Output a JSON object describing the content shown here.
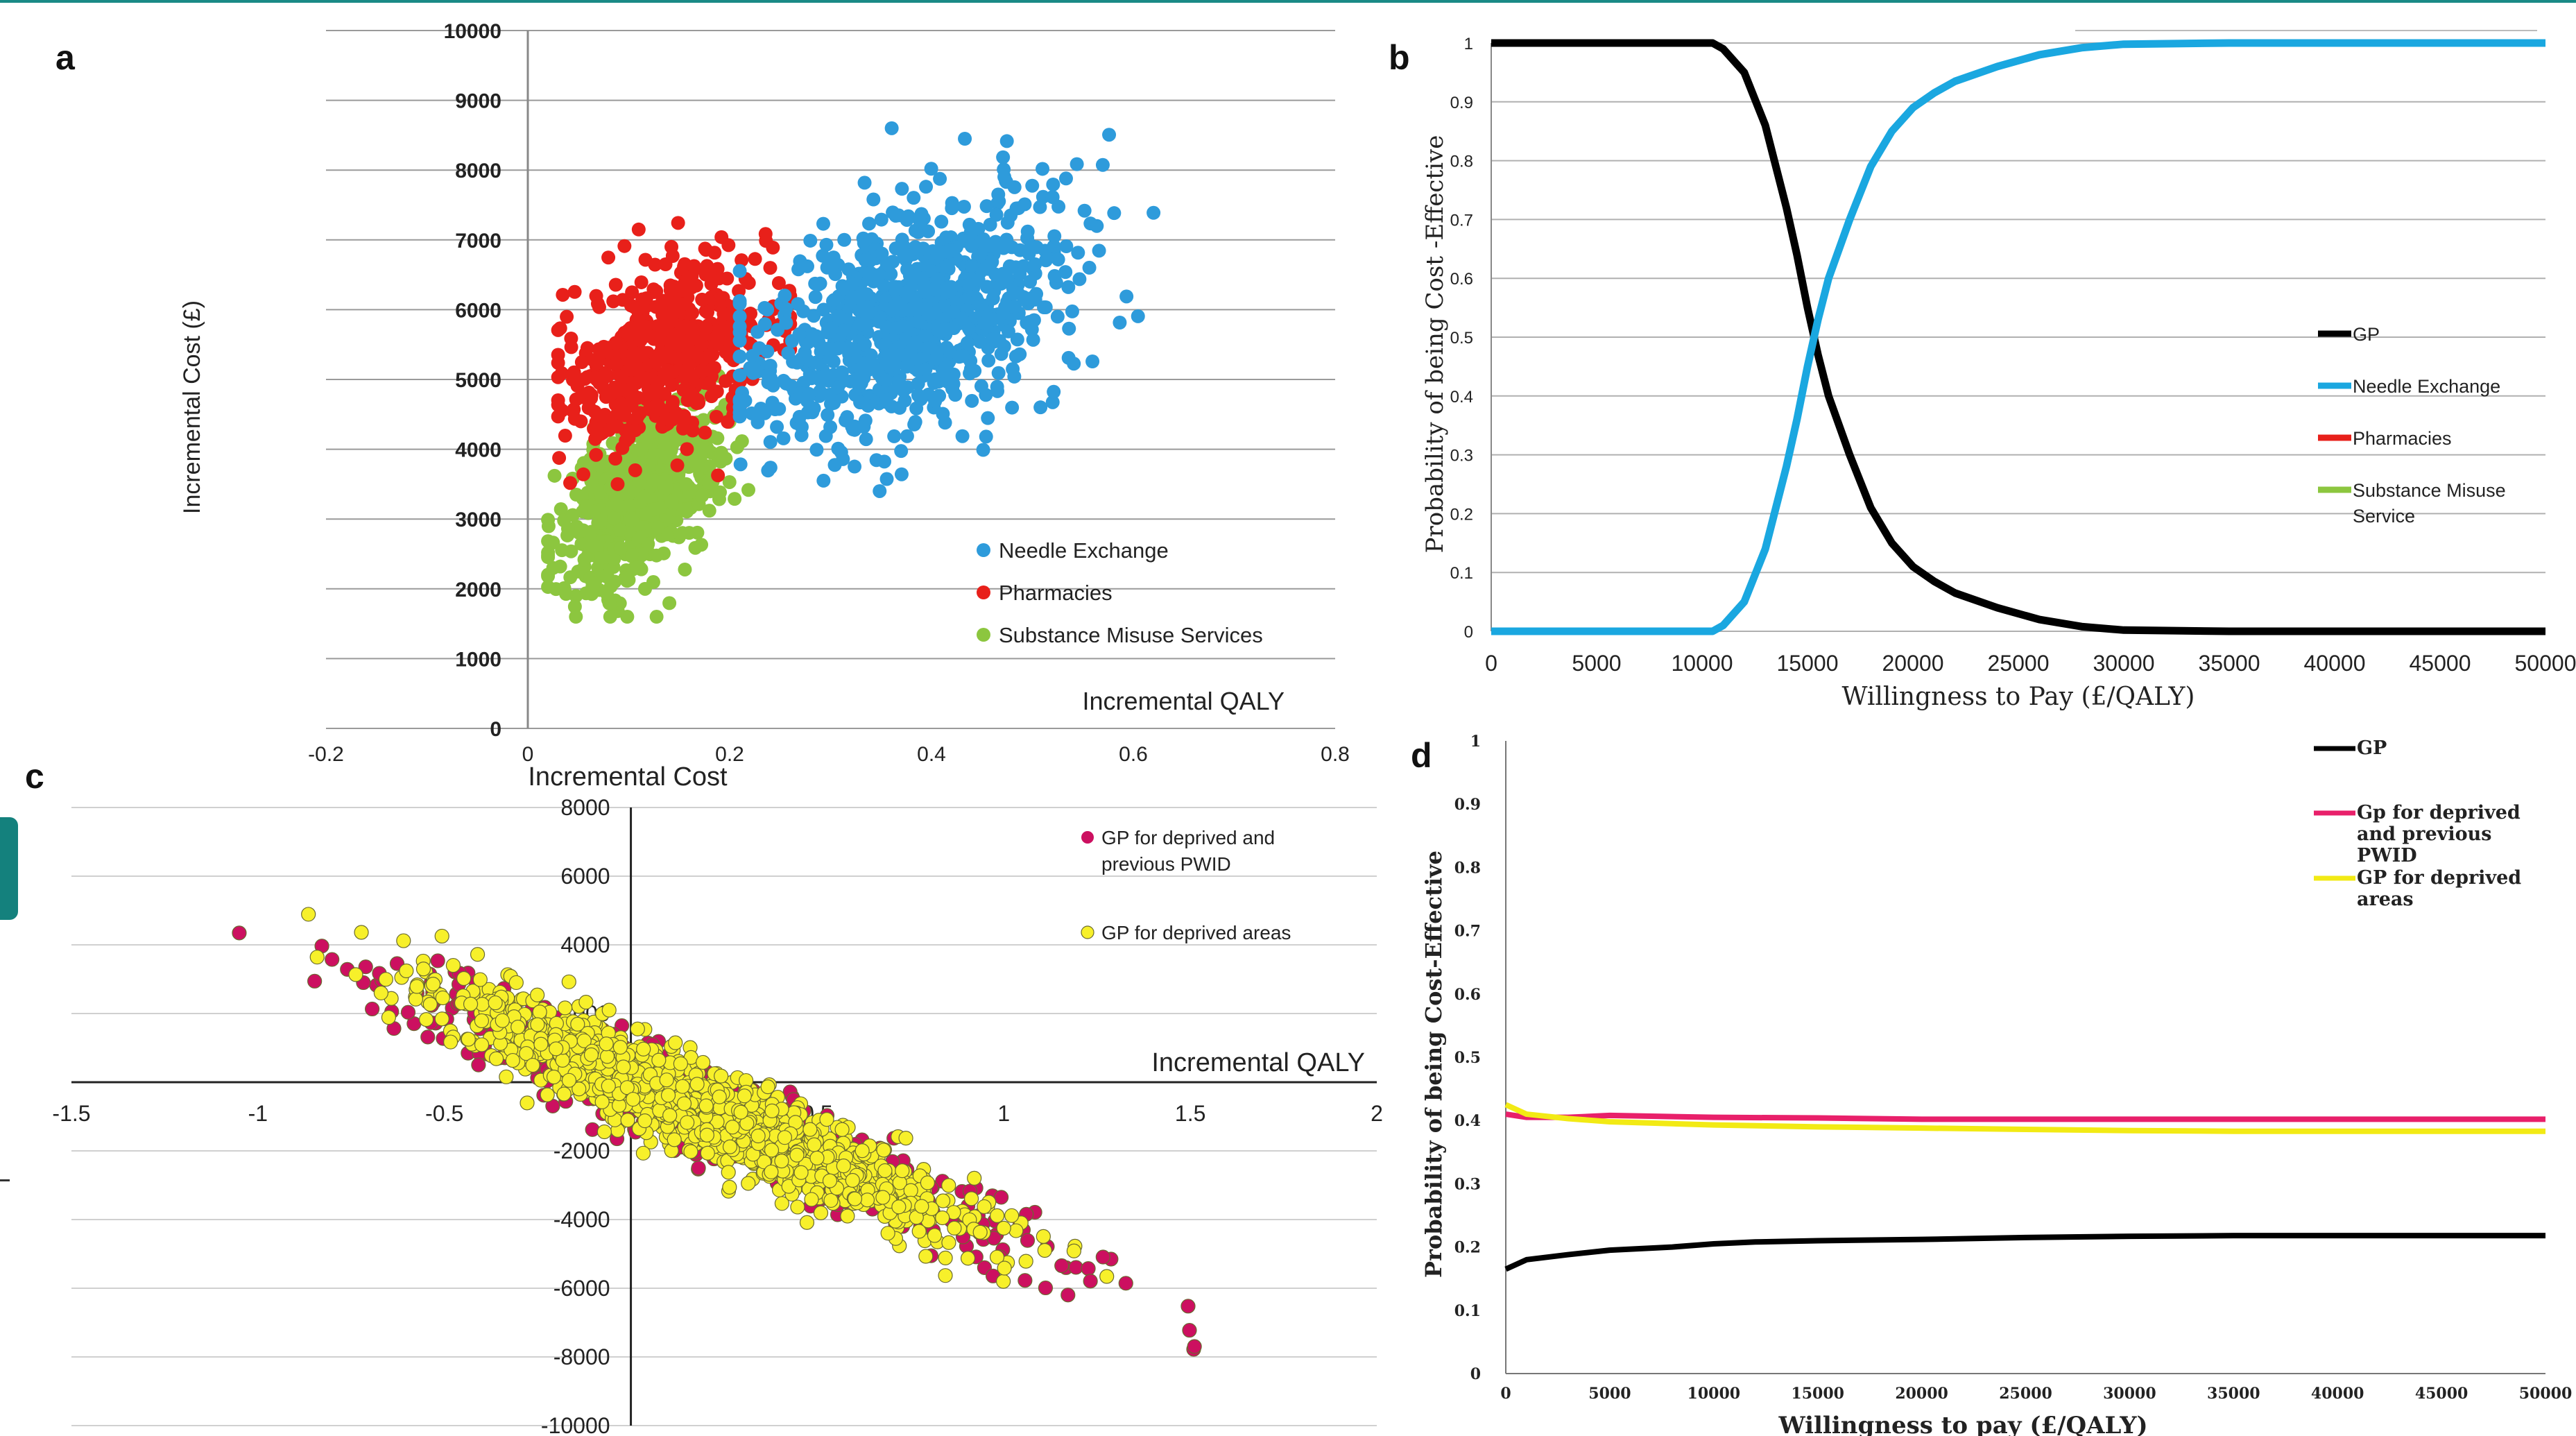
{
  "panels": {
    "a": "a",
    "b": "b",
    "c": "c",
    "d": "d"
  },
  "chart_data": [
    {
      "id": "a",
      "type": "scatter",
      "title": "",
      "xlabel": "Incremental QALY",
      "ylabel": "Incremental Cost (£)",
      "xlim": [
        -0.2,
        0.8
      ],
      "ylim": [
        0,
        10000
      ],
      "y_ticks": [
        0,
        1000,
        2000,
        3000,
        4000,
        5000,
        6000,
        7000,
        8000,
        9000,
        10000
      ],
      "x_ticks": [
        -0.2,
        0,
        0.2,
        0.4,
        0.6,
        0.8
      ],
      "x_tick_labels": [
        "-0.2",
        "0",
        "0.2",
        "0.4",
        "0.6",
        "0.8"
      ],
      "grid": true,
      "legend_position": "bottom-right",
      "series": [
        {
          "name": "Needle Exchange",
          "color": "#2e9bdb",
          "cloud": {
            "cx": 0.38,
            "cy": 5900,
            "sx": 0.075,
            "sy": 850,
            "rho": 0.45,
            "n": 900,
            "x_range": [
              0.21,
              0.62
            ],
            "y_range": [
              3400,
              8600
            ]
          }
        },
        {
          "name": "Pharmacies",
          "color": "#e8201a",
          "cloud": {
            "cx": 0.14,
            "cy": 5400,
            "sx": 0.05,
            "sy": 650,
            "rho": 0.4,
            "n": 550,
            "x_range": [
              0.03,
              0.26
            ],
            "y_range": [
              3500,
              7400
            ]
          }
        },
        {
          "name": "Substance Misuse Services",
          "color": "#8cc63f",
          "cloud": {
            "cx": 0.11,
            "cy": 3300,
            "sx": 0.038,
            "sy": 650,
            "rho": 0.5,
            "n": 650,
            "x_range": [
              0.02,
              0.22
            ],
            "y_range": [
              1600,
              5100
            ]
          }
        }
      ]
    },
    {
      "id": "b",
      "type": "line",
      "title": "",
      "xlabel": "Willingness to Pay (£/QALY)",
      "ylabel": "Probability of being Cost -Effective",
      "xlim": [
        0,
        50000
      ],
      "ylim": [
        0,
        1
      ],
      "x_ticks": [
        0,
        5000,
        10000,
        15000,
        20000,
        25000,
        30000,
        35000,
        40000,
        45000,
        50000
      ],
      "y_ticks": [
        0,
        0.1,
        0.2,
        0.3,
        0.4,
        0.5,
        0.6,
        0.7,
        0.8,
        0.9,
        1
      ],
      "grid": true,
      "legend_position": "right",
      "series": [
        {
          "name": "GP",
          "color": "#000000",
          "x": [
            0,
            10000,
            10500,
            11000,
            12000,
            13000,
            14000,
            14500,
            15000,
            15500,
            16000,
            17000,
            18000,
            19000,
            20000,
            21000,
            22000,
            24000,
            26000,
            28000,
            30000,
            35000,
            40000,
            45000,
            50000
          ],
          "y": [
            1,
            1,
            1,
            0.99,
            0.95,
            0.86,
            0.72,
            0.64,
            0.55,
            0.47,
            0.4,
            0.3,
            0.21,
            0.15,
            0.11,
            0.085,
            0.065,
            0.04,
            0.02,
            0.008,
            0.002,
            0,
            0,
            0,
            0
          ]
        },
        {
          "name": "Needle Exchange",
          "color": "#1aa7e0",
          "x": [
            0,
            10000,
            10500,
            11000,
            12000,
            13000,
            14000,
            14500,
            15000,
            15500,
            16000,
            17000,
            18000,
            19000,
            20000,
            21000,
            22000,
            24000,
            26000,
            28000,
            30000,
            35000,
            40000,
            45000,
            50000
          ],
          "y": [
            0,
            0,
            0,
            0.01,
            0.05,
            0.14,
            0.28,
            0.36,
            0.45,
            0.53,
            0.6,
            0.7,
            0.79,
            0.85,
            0.89,
            0.915,
            0.935,
            0.96,
            0.98,
            0.992,
            0.998,
            1,
            1,
            1,
            1
          ]
        },
        {
          "name": "Pharmacies",
          "color": "#e8201a",
          "x": [
            0,
            50000
          ],
          "y": [
            0,
            0
          ]
        },
        {
          "name": "Substance Misuse Service",
          "color": "#8cc63f",
          "x": [
            0,
            50000
          ],
          "y": [
            0,
            0
          ]
        }
      ]
    },
    {
      "id": "c",
      "type": "scatter",
      "title": "Incremental Cost",
      "xlabel": "Incremental QALY",
      "ylabel": "",
      "xlim": [
        -1.5,
        2
      ],
      "ylim": [
        -10000,
        8000
      ],
      "x_ticks": [
        -1.5,
        -1,
        -0.5,
        0,
        0.5,
        1,
        1.5,
        2
      ],
      "y_ticks": [
        -10000,
        -8000,
        -6000,
        -4000,
        -2000,
        0,
        2000,
        4000,
        6000,
        8000
      ],
      "grid": true,
      "legend_position": "top-right",
      "series": [
        {
          "name": "GP for deprived and previous PWID",
          "color": "#cc1060",
          "line": {
            "slope": -4500,
            "x_range": [
              -1.05,
              1.58
            ],
            "sx": 0.42,
            "resid": 650,
            "n": 650
          }
        },
        {
          "name": "GP for deprived areas",
          "color": "#f7f02a",
          "line": {
            "slope": -4600,
            "x_range": [
              -1.0,
              1.5
            ],
            "sx": 0.36,
            "resid": 650,
            "n": 1300
          }
        }
      ]
    },
    {
      "id": "d",
      "type": "line",
      "title": "",
      "xlabel": "Willingness to pay (£/QALY)",
      "ylabel": "Probability of being Cost-Effective",
      "xlim": [
        0,
        50000
      ],
      "ylim": [
        0,
        1
      ],
      "x_ticks": [
        0,
        5000,
        10000,
        15000,
        20000,
        25000,
        30000,
        35000,
        40000,
        45000,
        50000
      ],
      "y_ticks": [
        0,
        0.1,
        0.2,
        0.3,
        0.4,
        0.5,
        0.6,
        0.7,
        0.8,
        0.9,
        1
      ],
      "grid": false,
      "legend_position": "top-right",
      "series": [
        {
          "name": "GP",
          "color": "#000000",
          "x": [
            0,
            1000,
            3000,
            5000,
            8000,
            10000,
            12000,
            15000,
            20000,
            25000,
            30000,
            35000,
            40000,
            45000,
            50000
          ],
          "y": [
            0.165,
            0.18,
            0.188,
            0.195,
            0.2,
            0.205,
            0.208,
            0.21,
            0.212,
            0.215,
            0.217,
            0.218,
            0.218,
            0.218,
            0.218
          ]
        },
        {
          "name": "Gp for deprived and previous PWID",
          "color": "#e8206a",
          "x": [
            0,
            1000,
            3000,
            5000,
            10000,
            15000,
            20000,
            25000,
            30000,
            35000,
            40000,
            45000,
            50000
          ],
          "y": [
            0.41,
            0.405,
            0.405,
            0.408,
            0.405,
            0.404,
            0.402,
            0.402,
            0.402,
            0.402,
            0.402,
            0.402,
            0.402
          ]
        },
        {
          "name": "GP for deprived areas",
          "color": "#f2ea14",
          "x": [
            0,
            1000,
            3000,
            5000,
            10000,
            15000,
            20000,
            25000,
            30000,
            35000,
            40000,
            45000,
            50000
          ],
          "y": [
            0.425,
            0.41,
            0.403,
            0.398,
            0.393,
            0.39,
            0.388,
            0.386,
            0.384,
            0.383,
            0.383,
            0.383,
            0.383
          ]
        }
      ]
    }
  ]
}
